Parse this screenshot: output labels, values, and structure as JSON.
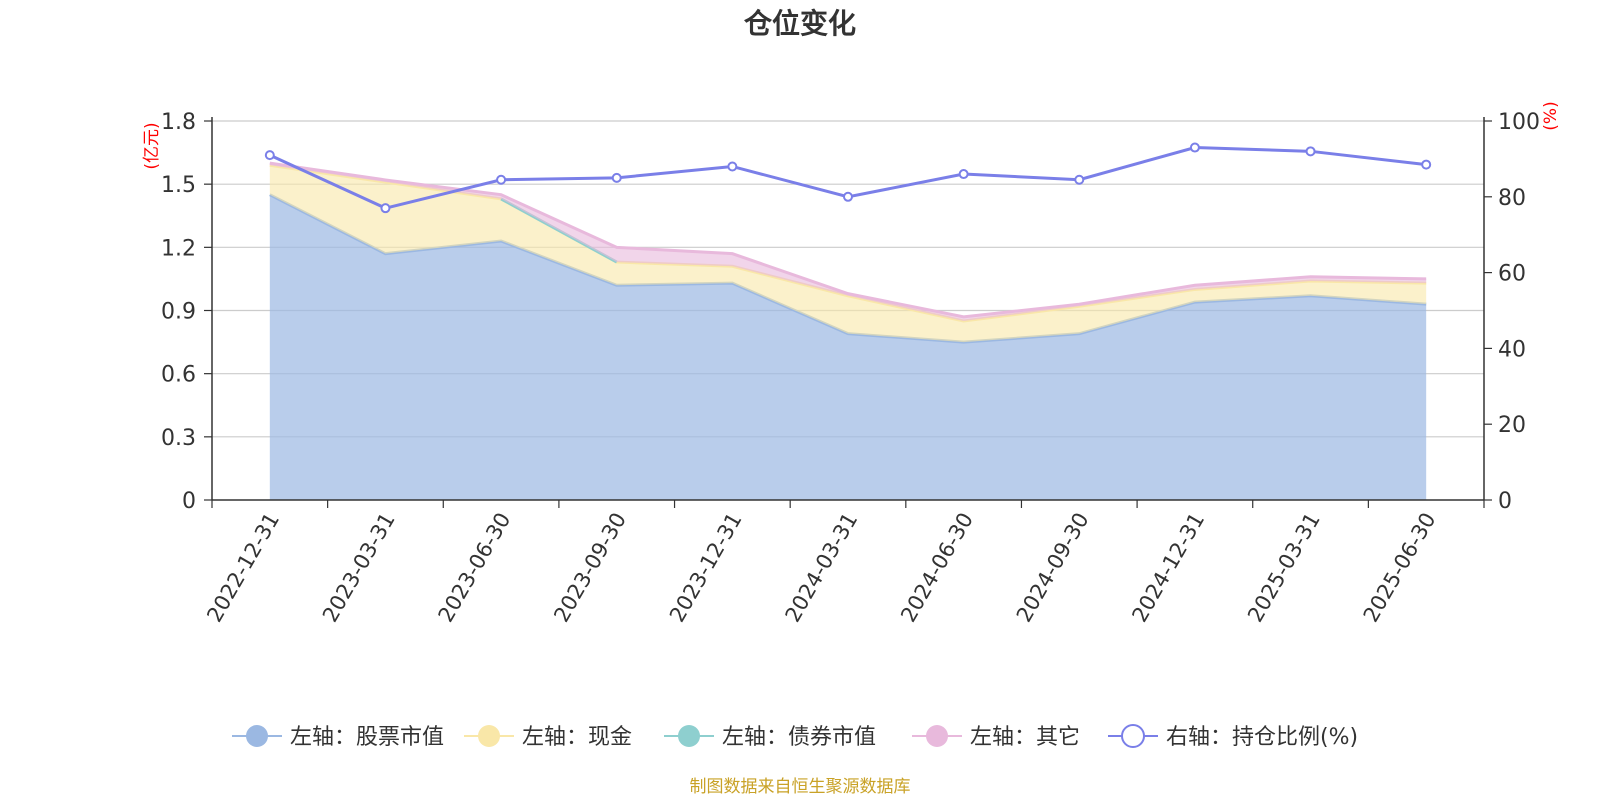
{
  "chart_data": {
    "type": "area",
    "title": "仓位变化",
    "categories": [
      "2022-12-31",
      "2023-03-31",
      "2023-06-30",
      "2023-09-30",
      "2023-12-31",
      "2024-03-31",
      "2024-06-30",
      "2024-09-30",
      "2024-12-31",
      "2025-03-31",
      "2025-06-30"
    ],
    "left_axis": {
      "unit": "(亿元)",
      "ylim": [
        0,
        1.8
      ],
      "ticks": [
        "0",
        "0.3",
        "0.6",
        "0.9",
        "1.2",
        "1.5",
        "1.8"
      ]
    },
    "right_axis": {
      "unit": "(%)",
      "ylim": [
        0,
        100
      ],
      "ticks": [
        "0",
        "20",
        "40",
        "60",
        "80",
        "100"
      ]
    },
    "grid": true,
    "legend_position": "bottom",
    "series": [
      {
        "name": "左轴：股票市值",
        "axis": "left",
        "color": "#9bb8e2",
        "values": [
          1.45,
          1.17,
          1.23,
          1.02,
          1.03,
          0.79,
          0.75,
          0.79,
          0.94,
          0.97,
          0.93
        ]
      },
      {
        "name": "左轴：现金",
        "axis": "left",
        "color": "#f9e7a8",
        "values": [
          0.14,
          0.34,
          0.2,
          0.11,
          0.08,
          0.18,
          0.1,
          0.13,
          0.06,
          0.07,
          0.1
        ]
      },
      {
        "name": "左轴：债券市值",
        "axis": "left",
        "color": "#8ecfcf",
        "values": [
          null,
          null,
          0.0,
          0.0,
          null,
          null,
          null,
          null,
          null,
          null,
          null
        ]
      },
      {
        "name": "左轴：其它",
        "axis": "left",
        "color": "#e8b9dc",
        "values": [
          0.01,
          0.01,
          0.02,
          0.07,
          0.06,
          0.01,
          0.02,
          0.01,
          0.02,
          0.02,
          0.02
        ]
      },
      {
        "name": "右轴：持仓比例(%)",
        "axis": "right",
        "color": "#7a7fe8",
        "values": [
          91,
          77,
          84.5,
          85,
          88,
          80,
          86,
          84.5,
          93,
          92,
          88.5
        ]
      }
    ],
    "source": "制图数据来自恒生聚源数据库"
  }
}
